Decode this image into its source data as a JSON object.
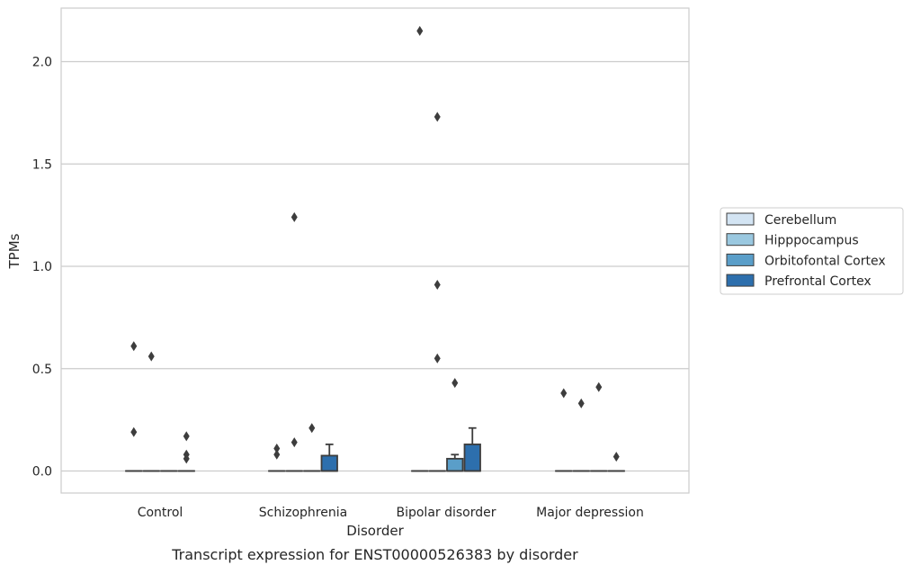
{
  "chart_data": {
    "type": "boxplot",
    "title": "",
    "caption": "Transcript expression for ENST00000526383 by disorder",
    "xlabel": "Disorder",
    "ylabel": "TPMs",
    "ylim": [
      -0.1,
      2.25
    ],
    "yticks": [
      0.0,
      0.5,
      1.0,
      1.5,
      2.0
    ],
    "ytick_labels": [
      "0.0",
      "0.5",
      "1.0",
      "1.5",
      "2.0"
    ],
    "grid": "horizontal",
    "legend_placement": "right",
    "categories": [
      "Control",
      "Schizophrenia",
      "Bipolar disorder",
      "Major depression"
    ],
    "series": [
      {
        "name": "Cerebellum",
        "color": "#d3e4f3",
        "boxes": [
          {
            "q1": 0,
            "median": 0,
            "q3": 0,
            "whisker_low": 0,
            "whisker_high": 0,
            "outliers": [
              0.61,
              0.19
            ]
          },
          {
            "q1": 0,
            "median": 0,
            "q3": 0,
            "whisker_low": 0,
            "whisker_high": 0,
            "outliers": [
              0.11,
              0.08
            ]
          },
          {
            "q1": 0,
            "median": 0,
            "q3": 0,
            "whisker_low": 0,
            "whisker_high": 0,
            "outliers": [
              2.15
            ]
          },
          {
            "q1": 0,
            "median": 0,
            "q3": 0,
            "whisker_low": 0,
            "whisker_high": 0,
            "outliers": [
              0.38
            ]
          }
        ]
      },
      {
        "name": "Hipppocampus",
        "color": "#9ac8e0",
        "boxes": [
          {
            "q1": 0,
            "median": 0,
            "q3": 0,
            "whisker_low": 0,
            "whisker_high": 0,
            "outliers": [
              0.56
            ]
          },
          {
            "q1": 0,
            "median": 0,
            "q3": 0,
            "whisker_low": 0,
            "whisker_high": 0,
            "outliers": [
              1.24,
              0.14
            ]
          },
          {
            "q1": 0,
            "median": 0,
            "q3": 0,
            "whisker_low": 0,
            "whisker_high": 0,
            "outliers": [
              1.73,
              0.91,
              0.55
            ]
          },
          {
            "q1": 0,
            "median": 0,
            "q3": 0,
            "whisker_low": 0,
            "whisker_high": 0,
            "outliers": [
              0.33
            ]
          }
        ]
      },
      {
        "name": "Orbitofontal Cortex",
        "color": "#5a9ec9",
        "boxes": [
          {
            "q1": 0,
            "median": 0,
            "q3": 0,
            "whisker_low": 0,
            "whisker_high": 0,
            "outliers": []
          },
          {
            "q1": 0,
            "median": 0,
            "q3": 0,
            "whisker_low": 0,
            "whisker_high": 0,
            "outliers": [
              0.21
            ]
          },
          {
            "q1": 0,
            "median": 0,
            "q3": 0.06,
            "whisker_low": 0,
            "whisker_high": 0.08,
            "outliers": [
              0.43
            ]
          },
          {
            "q1": 0,
            "median": 0,
            "q3": 0,
            "whisker_low": 0,
            "whisker_high": 0,
            "outliers": [
              0.41
            ]
          }
        ]
      },
      {
        "name": "Prefrontal Cortex",
        "color": "#2d6fad",
        "boxes": [
          {
            "q1": 0,
            "median": 0,
            "q3": 0,
            "whisker_low": 0,
            "whisker_high": 0,
            "outliers": [
              0.17,
              0.08,
              0.06
            ]
          },
          {
            "q1": 0,
            "median": 0,
            "q3": 0.075,
            "whisker_low": 0,
            "whisker_high": 0.13,
            "outliers": []
          },
          {
            "q1": 0,
            "median": 0,
            "q3": 0.13,
            "whisker_low": 0,
            "whisker_high": 0.21,
            "outliers": []
          },
          {
            "q1": 0,
            "median": 0,
            "q3": 0,
            "whisker_low": 0,
            "whisker_high": 0,
            "outliers": [
              0.07
            ]
          }
        ]
      }
    ]
  }
}
